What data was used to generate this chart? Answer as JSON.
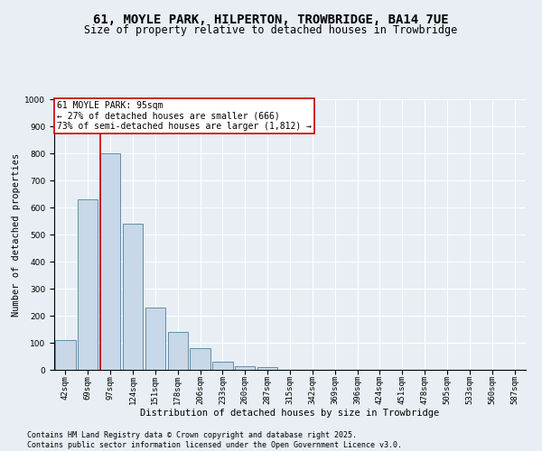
{
  "title1": "61, MOYLE PARK, HILPERTON, TROWBRIDGE, BA14 7UE",
  "title2": "Size of property relative to detached houses in Trowbridge",
  "xlabel": "Distribution of detached houses by size in Trowbridge",
  "ylabel": "Number of detached properties",
  "categories": [
    "42sqm",
    "69sqm",
    "97sqm",
    "124sqm",
    "151sqm",
    "178sqm",
    "206sqm",
    "233sqm",
    "260sqm",
    "287sqm",
    "315sqm",
    "342sqm",
    "369sqm",
    "396sqm",
    "424sqm",
    "451sqm",
    "478sqm",
    "505sqm",
    "533sqm",
    "560sqm",
    "587sqm"
  ],
  "bar_values": [
    110,
    630,
    800,
    540,
    230,
    140,
    80,
    30,
    15,
    10,
    0,
    0,
    0,
    0,
    0,
    0,
    0,
    0,
    0,
    0,
    0
  ],
  "bar_color": "#c8d8e8",
  "bar_edge_color": "#5080a0",
  "annotation_line1": "61 MOYLE PARK: 95sqm",
  "annotation_line2": "← 27% of detached houses are smaller (666)",
  "annotation_line3": "73% of semi-detached houses are larger (1,812) →",
  "annotation_box_color": "#ffffff",
  "annotation_box_edge": "#cc0000",
  "vline_color": "#cc0000",
  "vline_x": 1.55,
  "ylim": [
    0,
    1000
  ],
  "yticks": [
    0,
    100,
    200,
    300,
    400,
    500,
    600,
    700,
    800,
    900,
    1000
  ],
  "background_color": "#e8eef4",
  "grid_color": "#ffffff",
  "footer1": "Contains HM Land Registry data © Crown copyright and database right 2025.",
  "footer2": "Contains public sector information licensed under the Open Government Licence v3.0.",
  "title1_fontsize": 10,
  "title2_fontsize": 8.5,
  "annotation_fontsize": 7,
  "footer_fontsize": 6,
  "axis_label_fontsize": 7.5,
  "tick_fontsize": 6.5
}
